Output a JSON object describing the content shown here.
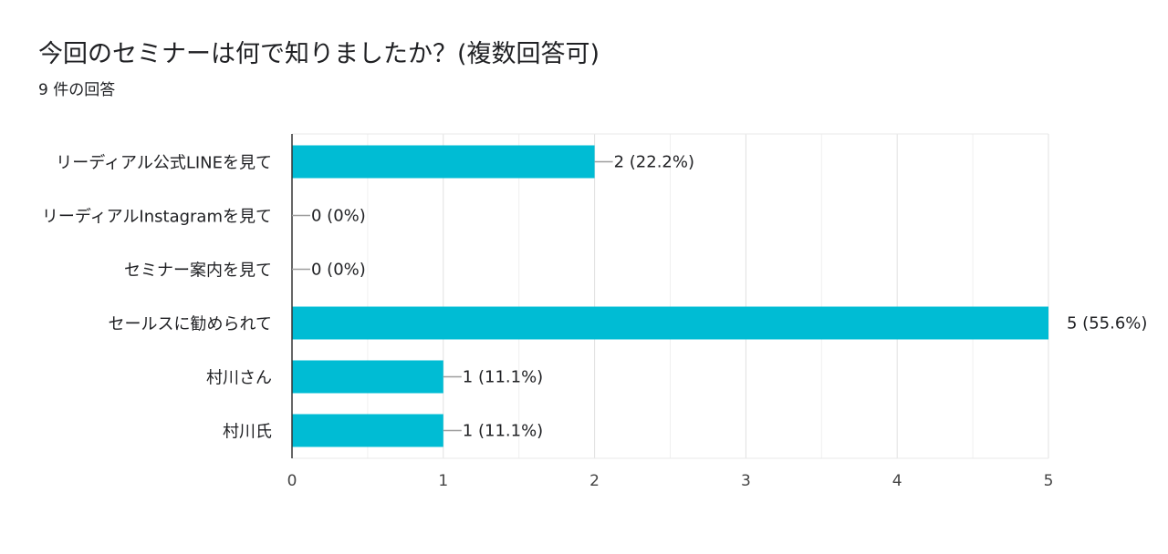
{
  "header": {
    "title": "今回のセミナーは何で知りましたか？(複数回答可)",
    "response_count": "9 件の回答"
  },
  "colors": {
    "bar": "#00bcd4",
    "grid": "#e8e8e8",
    "axis": "#333333",
    "leader": "#9e9e9e"
  },
  "chart_data": {
    "type": "bar",
    "orientation": "horizontal",
    "title": "今回のセミナーは何で知りましたか？(複数回答可)",
    "subtitle": "9 件の回答",
    "categories": [
      "リーディアル公式LINEを見て",
      "リーディアルInstagramを見て",
      "セミナー案内を見て",
      "セールスに勧められて",
      "村川さん",
      "村川氏"
    ],
    "values": [
      2,
      0,
      0,
      5,
      1,
      1
    ],
    "data_labels": [
      "2 (22.2%)",
      "0 (0%)",
      "0 (0%)",
      "5 (55.6%)",
      "1 (11.1%)",
      "1 (11.1%)"
    ],
    "xlim": [
      0,
      5
    ],
    "xticks": [
      "0",
      "1",
      "2",
      "3",
      "4",
      "5"
    ],
    "xlabel": "",
    "ylabel": "",
    "grid": true,
    "legend": "none"
  }
}
